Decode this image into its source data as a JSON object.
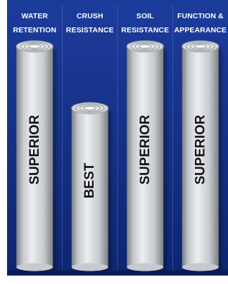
{
  "chart_data": {
    "type": "bar",
    "categories": [
      {
        "line1": "WATER",
        "line2": "RETENTION"
      },
      {
        "line1": "CRUSH",
        "line2": "RESISTANCE"
      },
      {
        "line1": "SOIL",
        "line2": "RESISTANCE"
      },
      {
        "line1": "FUNCTION &",
        "line2": "APPEARANCE"
      }
    ],
    "labels": [
      "SUPERIOR",
      "BEST",
      "SUPERIOR",
      "SUPERIOR"
    ],
    "values": [
      1.0,
      0.72,
      1.0,
      1.0
    ],
    "value_note": "relative column heights; the chart prints no numeric scale",
    "colors": {
      "background_top": "#1c3c9c",
      "background_bottom": "#0e2670",
      "divider": "#5f7cc8",
      "header_text": "#ffffff",
      "bar_light": "#eceef0",
      "bar_mid": "#c6c9cd",
      "bar_dark": "#7d8187",
      "bar_label": "#141414"
    }
  }
}
